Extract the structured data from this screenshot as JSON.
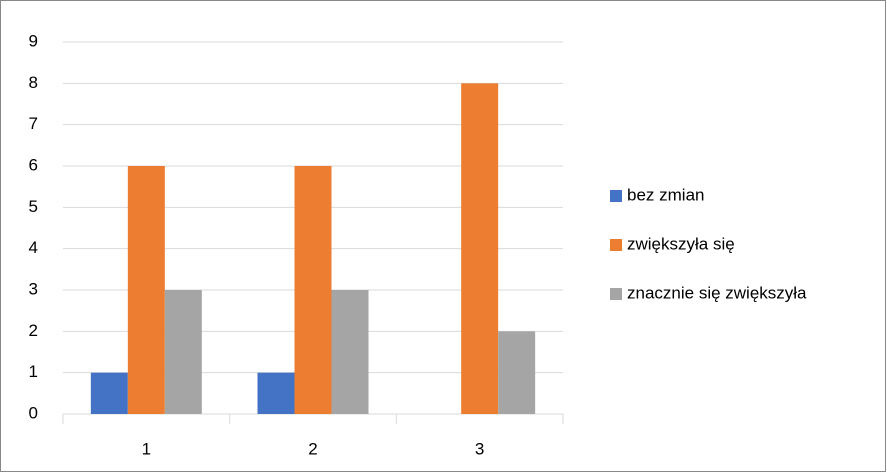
{
  "chart_data": {
    "type": "bar",
    "categories": [
      "1",
      "2",
      "3"
    ],
    "series": [
      {
        "name": "bez zmian",
        "color": "#4472c4",
        "values": [
          1,
          1,
          0
        ]
      },
      {
        "name": "zwiększyła się",
        "color": "#ed7d31",
        "values": [
          6,
          6,
          8
        ]
      },
      {
        "name": "znacznie się zwiększyła",
        "color": "#a5a5a5",
        "values": [
          3,
          3,
          2
        ]
      }
    ],
    "ylim": [
      0,
      9
    ],
    "yticks": [
      0,
      1,
      2,
      3,
      4,
      5,
      6,
      7,
      8,
      9
    ],
    "grid": true,
    "legend": "right"
  }
}
